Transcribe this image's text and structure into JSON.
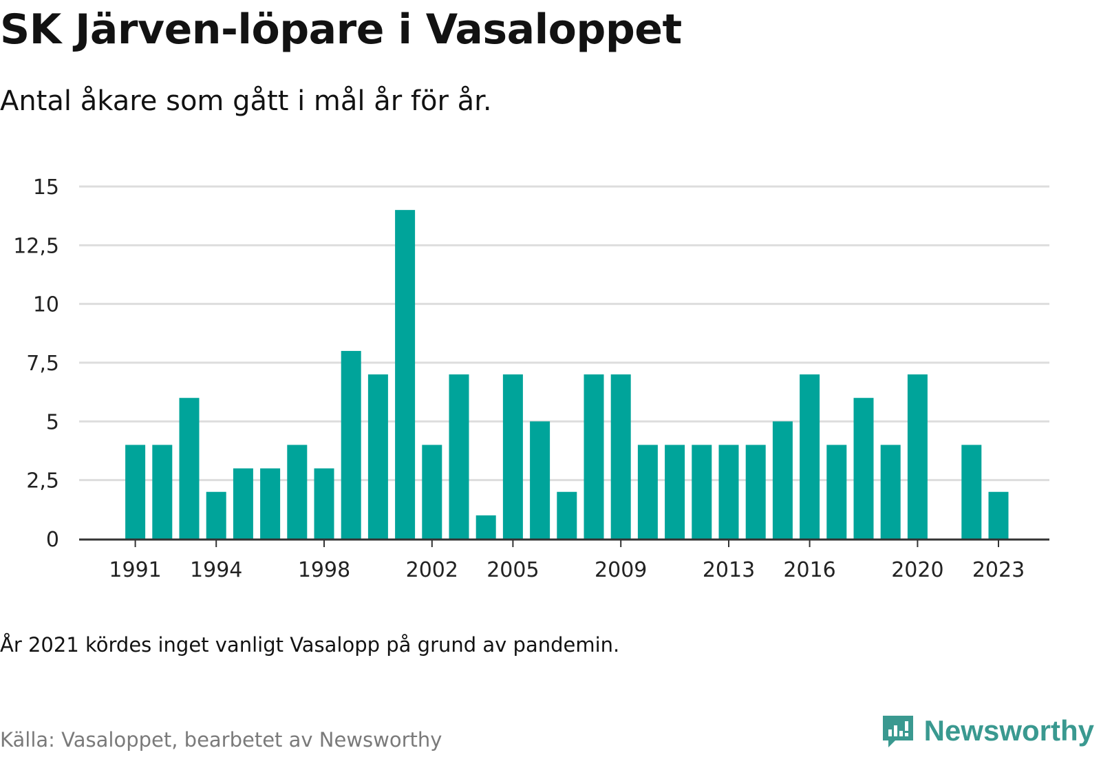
{
  "header": {
    "title": "SK Järven-löpare i Vasaloppet",
    "subtitle": "Antal åkare som gått i mål år för år."
  },
  "footer": {
    "note": "År 2021 kördes inget vanligt Vasalopp på grund av pandemin.",
    "source": "Källa: Vasaloppet, bearbetet av Newsworthy",
    "brand": "Newsworthy"
  },
  "colors": {
    "bar": "#00a49a",
    "grid": "#dddddd",
    "axis": "#333333",
    "brand": "#3a9990"
  },
  "icons": [
    "newsworthy-logo-icon"
  ],
  "chart_data": {
    "type": "bar",
    "title": "SK Järven-löpare i Vasaloppet",
    "subtitle": "Antal åkare som gått i mål år för år.",
    "xlabel": "",
    "ylabel": "",
    "ylim": [
      0,
      15
    ],
    "yticks": [
      0,
      2.5,
      5,
      7.5,
      10,
      12.5,
      15
    ],
    "ytick_labels": [
      "0",
      "2,5",
      "5",
      "7,5",
      "10",
      "12,5",
      "15"
    ],
    "xtick_labels": [
      "1991",
      "1994",
      "1998",
      "2002",
      "2005",
      "2009",
      "2013",
      "2016",
      "2020",
      "2023"
    ],
    "grid": true,
    "legend": "none",
    "categories": [
      1991,
      1992,
      1993,
      1994,
      1995,
      1996,
      1997,
      1998,
      1999,
      2000,
      2001,
      2002,
      2003,
      2004,
      2005,
      2006,
      2007,
      2008,
      2009,
      2010,
      2011,
      2012,
      2013,
      2014,
      2015,
      2016,
      2017,
      2018,
      2019,
      2020,
      2021,
      2022,
      2023
    ],
    "values": [
      4,
      4,
      6,
      2,
      3,
      3,
      4,
      3,
      8,
      7,
      14,
      4,
      7,
      1,
      7,
      5,
      2,
      7,
      7,
      4,
      4,
      4,
      4,
      4,
      5,
      7,
      4,
      6,
      4,
      7,
      null,
      4,
      2
    ]
  }
}
